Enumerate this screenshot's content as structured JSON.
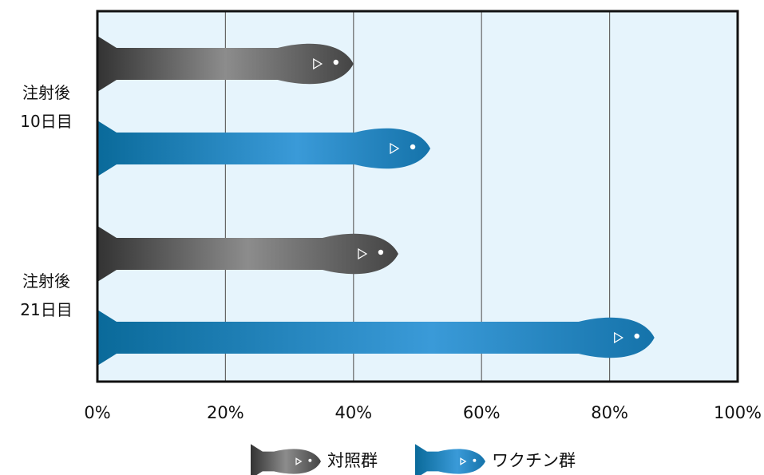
{
  "chart_data": {
    "type": "fish-bar",
    "categories": [
      "注射後\n10日目",
      "注射後\n21日目"
    ],
    "series": [
      {
        "name": "対照群",
        "color": "#8c8c8c",
        "values": [
          40,
          47
        ]
      },
      {
        "name": "ワクチン群",
        "color": "#3a9ad8",
        "values": [
          52,
          87
        ]
      }
    ],
    "xlim": [
      0,
      100
    ],
    "xticks": [
      {
        "value": 0,
        "label": "0%"
      },
      {
        "value": 20,
        "label": "20%"
      },
      {
        "value": 40,
        "label": "40%"
      },
      {
        "value": 60,
        "label": "60%"
      },
      {
        "value": 80,
        "label": "80%"
      },
      {
        "value": 100,
        "label": "100%"
      }
    ],
    "grid": true
  }
}
